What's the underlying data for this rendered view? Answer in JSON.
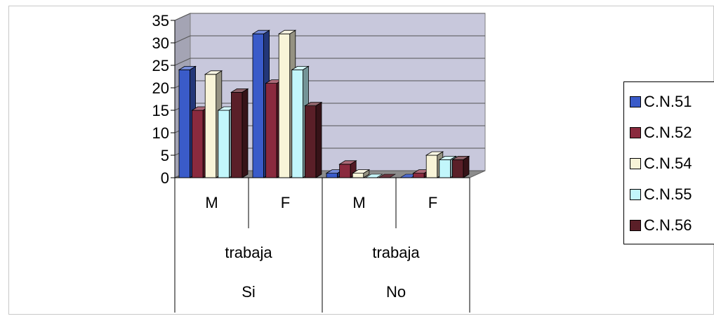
{
  "chart_data": {
    "type": "bar",
    "categories": [
      {
        "label": "M",
        "group": "trabaja",
        "answer": "Si"
      },
      {
        "label": "F",
        "group": "trabaja",
        "answer": "Si"
      },
      {
        "label": "M",
        "group": "trabaja",
        "answer": "No"
      },
      {
        "label": "F",
        "group": "trabaja",
        "answer": "No"
      }
    ],
    "group_labels": [
      "trabaja",
      "trabaja"
    ],
    "answer_labels": [
      "Si",
      "No"
    ],
    "series": [
      {
        "name": "C.N.51",
        "color": "#3a5bc9",
        "values": [
          24,
          32,
          1,
          0
        ]
      },
      {
        "name": "C.N.52",
        "color": "#8a2a3e",
        "values": [
          15,
          21,
          3,
          1
        ]
      },
      {
        "name": "C.N.54",
        "color": "#f8f4d8",
        "values": [
          23,
          32,
          1,
          5
        ]
      },
      {
        "name": "C.N.55",
        "color": "#c2f6fb",
        "values": [
          15,
          24,
          0,
          4
        ]
      },
      {
        "name": "C.N.56",
        "color": "#5a1f28",
        "values": [
          19,
          16,
          0,
          4
        ]
      }
    ],
    "yticks": [
      "0",
      "5",
      "10",
      "15",
      "20",
      "25",
      "30",
      "35"
    ],
    "ylim": [
      0,
      35
    ],
    "legend_position": "right",
    "grid": true,
    "style": "3d-clustered-column",
    "wall_color": "#c8c8dc"
  }
}
